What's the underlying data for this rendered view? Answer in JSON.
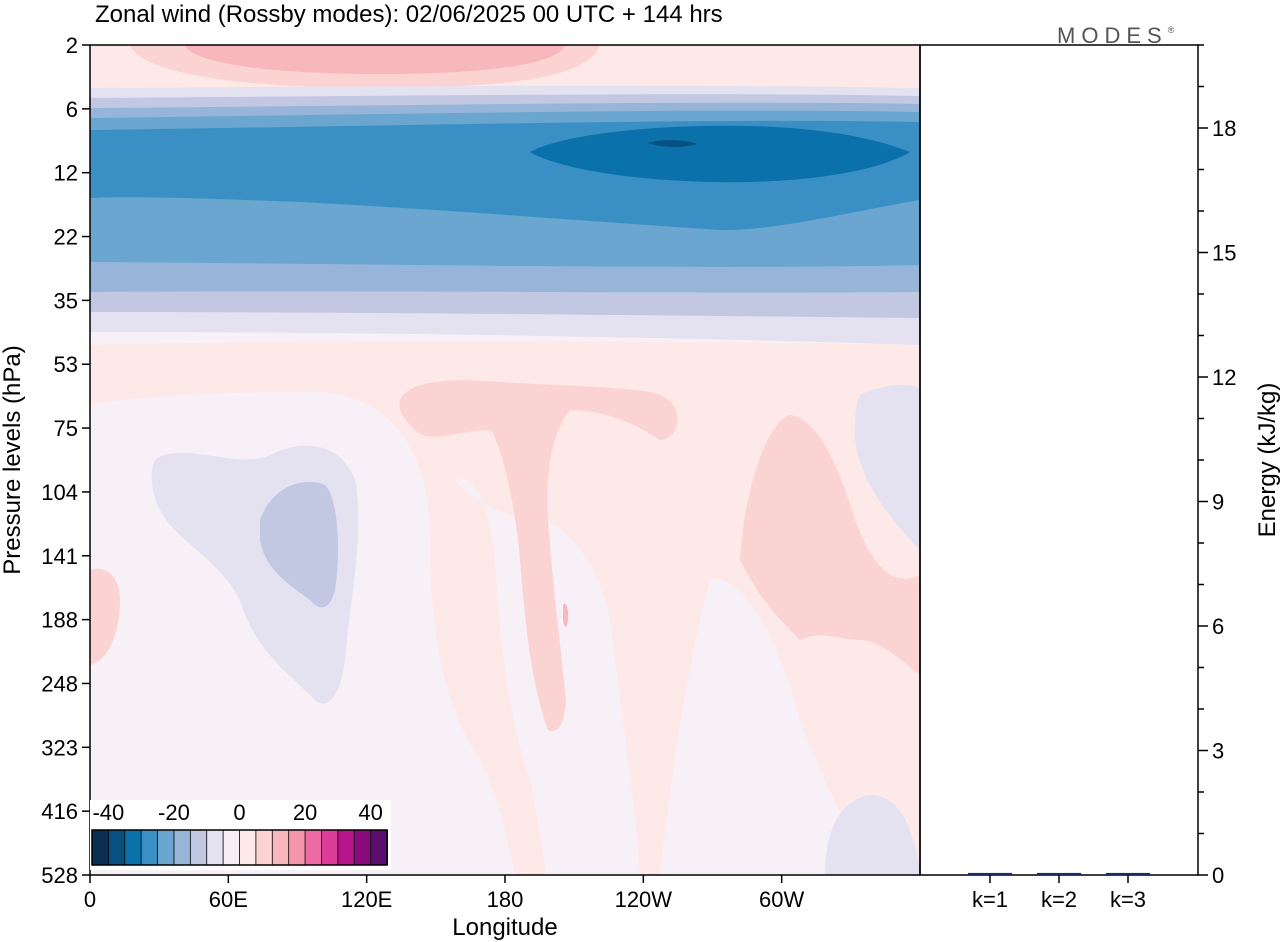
{
  "title": "Zonal wind (Rossby modes):  02/06/2025  00 UTC  + 144 hrs",
  "brand": "MODES",
  "brand_mark": "®",
  "chart_data": [
    {
      "type": "heatmap",
      "title": "Zonal wind (Rossby modes):  02/06/2025  00 UTC  + 144 hrs",
      "xlabel": "Longitude",
      "ylabel": "Pressure levels (hPa)",
      "x_ticks": [
        "0",
        "60E",
        "120E",
        "180",
        "120W",
        "60W"
      ],
      "x_tick_values": [
        0,
        60,
        120,
        180,
        240,
        300
      ],
      "xlim": [
        0,
        360
      ],
      "y_ticks": [
        "2",
        "6",
        "12",
        "22",
        "35",
        "53",
        "75",
        "104",
        "141",
        "188",
        "248",
        "323",
        "416",
        "528"
      ],
      "y_scale": "level-index",
      "colorbar": {
        "tick_labels": [
          "-40",
          "-20",
          "0",
          "20",
          "40"
        ],
        "tick_values": [
          -40,
          -20,
          0,
          20,
          40
        ],
        "range": [
          -45,
          45
        ],
        "step": 5,
        "colors": [
          "#0a2f52",
          "#08507f",
          "#0b71ab",
          "#3a90c5",
          "#6aa6cf",
          "#97b5d9",
          "#c2c8e2",
          "#e4e2f0",
          "#f6eff6",
          "#fde9e7",
          "#fbd3d3",
          "#f8b7bc",
          "#f595ac",
          "#ee6ba4",
          "#db3d99",
          "#b5148a",
          "#8b0a7e",
          "#5b0d70"
        ]
      },
      "regions": [
        {
          "level": 2.5,
          "x": [
            15,
            75
          ],
          "value": 12
        },
        {
          "level": 5.5,
          "x": [
            0,
            360
          ],
          "value": -3
        },
        {
          "level": 7.5,
          "x": [
            0,
            360
          ],
          "value": -18
        },
        {
          "level": 8.5,
          "x": [
            190,
            355
          ],
          "value": -28
        },
        {
          "level": 11,
          "x": [
            0,
            360
          ],
          "value": -14
        },
        {
          "level": 13,
          "x": [
            0,
            360
          ],
          "value": -7
        },
        {
          "level": 16,
          "x": [
            160,
            220
          ],
          "value": 6
        },
        {
          "level": 18,
          "x": [
            30,
            110
          ],
          "value": -3
        },
        {
          "level": 20,
          "x": [
            75,
            100
          ],
          "value": -6
        },
        {
          "level": 19,
          "x": [
            280,
            345
          ],
          "value": 6
        },
        {
          "level": 22,
          "x": [
            185,
            205
          ],
          "value": 6
        },
        {
          "level": 35,
          "x": [
            320,
            360
          ],
          "value": -3
        }
      ]
    },
    {
      "type": "bar",
      "title": "",
      "categories": [
        "k=1",
        "k=2",
        "k=3"
      ],
      "values": [
        0.05,
        0.05,
        0.05
      ],
      "ylabel": "Energy (kJ/kg)",
      "y_ticks": [
        0,
        3,
        6,
        9,
        12,
        15,
        18
      ],
      "ylim": [
        0,
        20
      ],
      "bar_color": "#1b2a6b"
    }
  ]
}
